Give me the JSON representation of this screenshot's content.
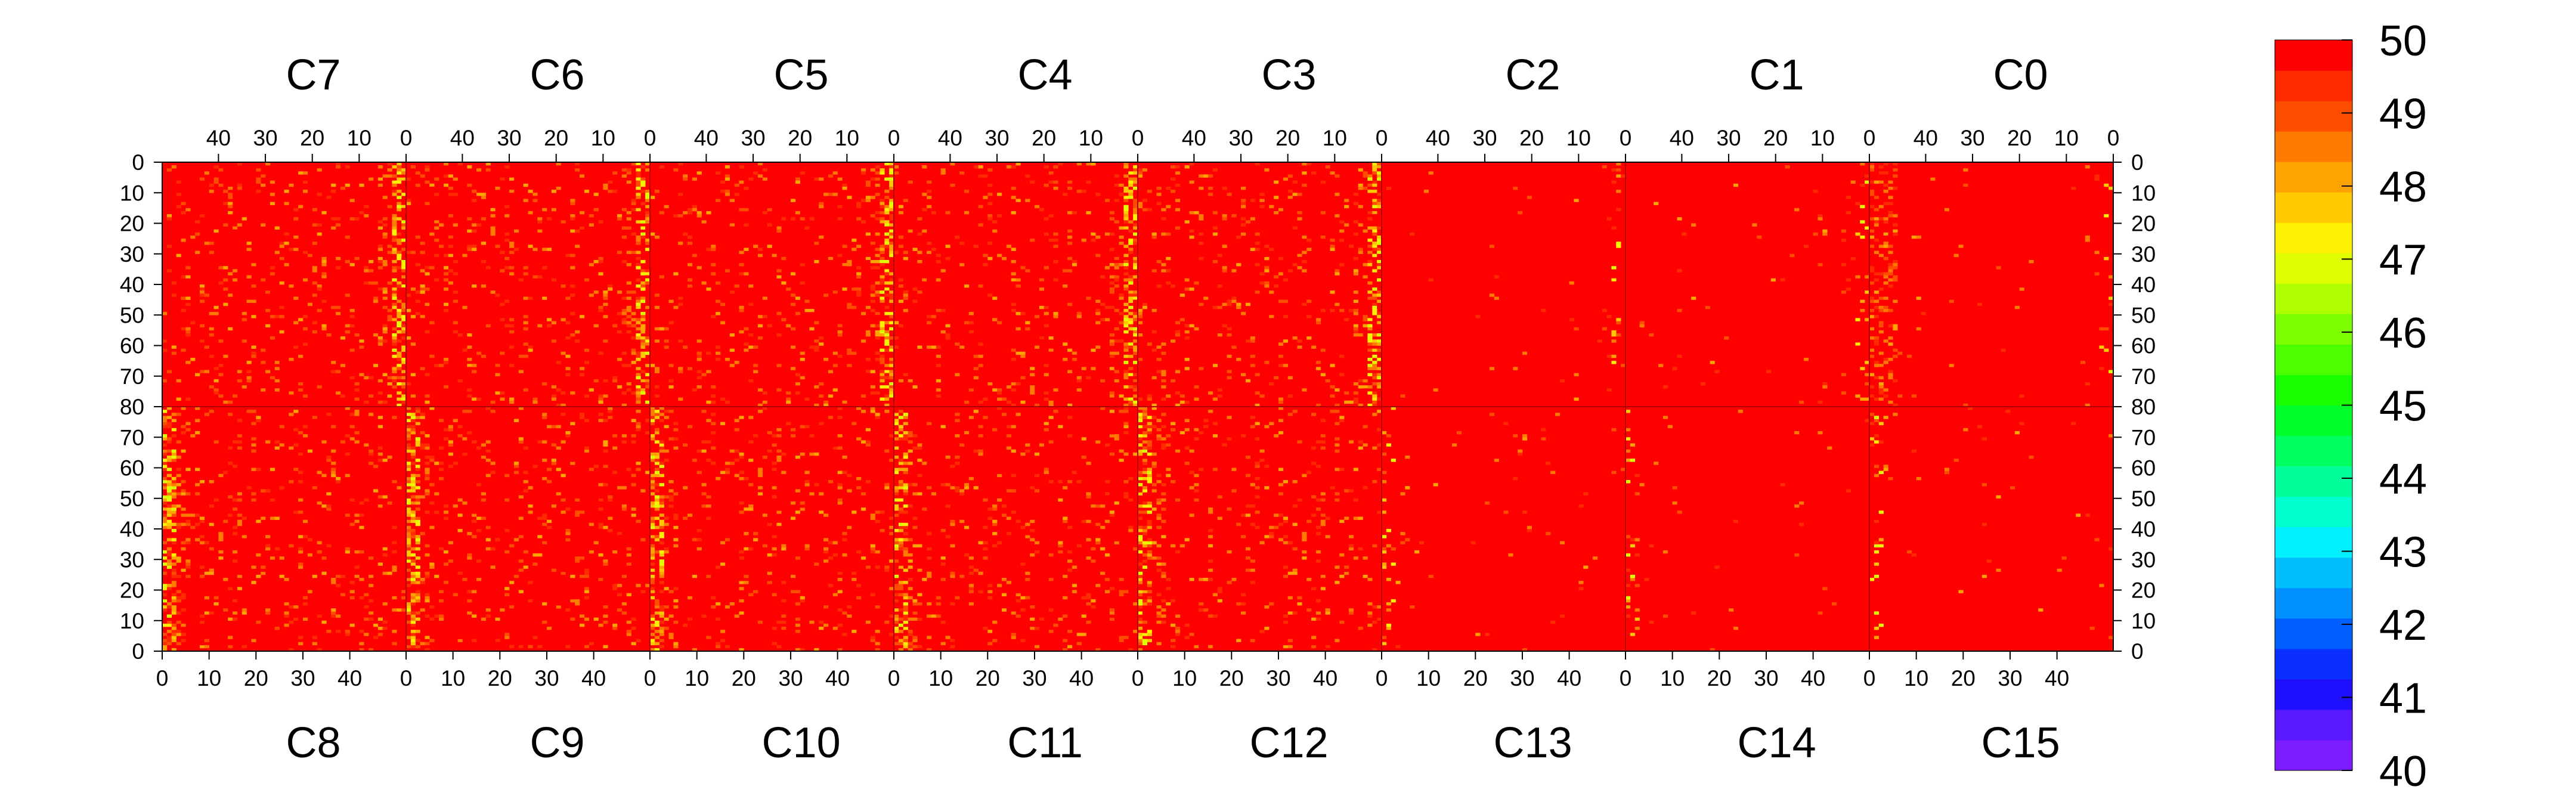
{
  "chart_data": {
    "type": "heatmap",
    "title": "",
    "top_chips": [
      "C7",
      "C6",
      "C5",
      "C4",
      "C3",
      "C2",
      "C1",
      "C0"
    ],
    "bottom_chips": [
      "C8",
      "C9",
      "C10",
      "C11",
      "C12",
      "C13",
      "C14",
      "C15"
    ],
    "chip_columns": 52,
    "rows_per_half": 80,
    "top_x_ticks": [
      "40",
      "30",
      "20",
      "10",
      "0"
    ],
    "top_x_tick_values": [
      40,
      30,
      20,
      10,
      0
    ],
    "bottom_x_ticks": [
      "0",
      "10",
      "20",
      "30",
      "40"
    ],
    "bottom_x_tick_values": [
      0,
      10,
      20,
      30,
      40
    ],
    "y_ticks_top_half": [
      "0",
      "10",
      "20",
      "30",
      "40",
      "50",
      "60",
      "70",
      "80"
    ],
    "y_ticks_bottom_half": [
      "70",
      "60",
      "50",
      "40",
      "30",
      "20",
      "10",
      "0"
    ],
    "y_tick_values_top_half": [
      0,
      10,
      20,
      30,
      40,
      50,
      60,
      70,
      80
    ],
    "y_tick_values_bottom_half": [
      70,
      60,
      50,
      40,
      30,
      20,
      10,
      0
    ],
    "z_range": [
      40,
      50
    ],
    "colorbar_labels": [
      "50",
      "49",
      "48",
      "47",
      "46",
      "45",
      "44",
      "43",
      "42",
      "41",
      "40"
    ],
    "colorbar_values": [
      50,
      49,
      48,
      47,
      46,
      45,
      44,
      43,
      42,
      41,
      40
    ],
    "colorbar_colors": [
      "#7a1cff",
      "#5a18ff",
      "#1f10ff",
      "#0a2fff",
      "#0060ff",
      "#0090ff",
      "#00bfff",
      "#00f0ff",
      "#00ffcf",
      "#00ff9a",
      "#00ff60",
      "#00ff2a",
      "#1aff00",
      "#4cff00",
      "#7dff00",
      "#b0ff00",
      "#dfff00",
      "#ffef00",
      "#ffc800",
      "#ffa300",
      "#ff7a00",
      "#ff4d00",
      "#ff2a00",
      "#ff0000"
    ],
    "dominant_value": 50,
    "noisy_columns_note": "values are mostly 50 with scattered 47-49 cells, denser near column 0 of chips C7-C3 and C8-C12"
  }
}
